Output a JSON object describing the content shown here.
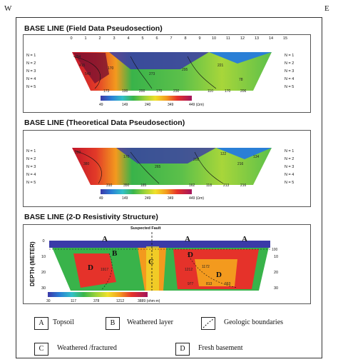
{
  "corners": {
    "west": "W",
    "east": "E"
  },
  "panels": [
    {
      "title": "BASE LINE (Field Data Pseudosection)",
      "n_labels": [
        "N = 1",
        "N = 2",
        "N = 3",
        "N = 4",
        "N = 5"
      ],
      "numbers": [
        "294",
        "415",
        "543",
        "170",
        "273",
        "295",
        "221",
        "78",
        "173",
        "100",
        "200",
        "170",
        "230",
        "110",
        "170",
        "206"
      ],
      "colorbar": [
        "49",
        "149",
        "240",
        "349",
        "449 (Ωm)"
      ]
    },
    {
      "title": "BASE LINE (Theoretical Data Pseudosection)",
      "n_labels": [
        "N = 1",
        "N = 2",
        "N = 3",
        "N = 4",
        "N = 5"
      ],
      "numbers": [
        "290",
        "380",
        "170",
        "265",
        "208",
        "122",
        "216",
        "134",
        "310",
        "350",
        "185",
        "162",
        "118",
        "213",
        "216"
      ],
      "colorbar": [
        "49",
        "149",
        "249",
        "349",
        "449 (Ωm)"
      ]
    },
    {
      "title": "BASE LINE (2-D Resistivity Structure)",
      "fault_label": "Suspected Fault",
      "depth_label": "DEPTH (METER)",
      "depth_ticks": [
        "0",
        "10",
        "20",
        "30"
      ],
      "region_labels": [
        "A",
        "A",
        "A",
        "B",
        "C",
        "D",
        "D",
        "D"
      ],
      "numbers": [
        "100",
        "1917",
        "1212",
        "977",
        "813",
        "663",
        "1172"
      ],
      "colorbar": [
        "30",
        "117",
        "378",
        "1212",
        "3889 (ohm-m)"
      ]
    }
  ],
  "x_ticks": [
    "0",
    "1",
    "2",
    "3",
    "4",
    "5",
    "6",
    "7",
    "8",
    "9",
    "10",
    "11",
    "12",
    "13",
    "14",
    "15"
  ],
  "legend": [
    {
      "key": "A",
      "text": "Topsoil"
    },
    {
      "key": "B",
      "text": "Weathered layer"
    },
    {
      "key": "",
      "text": "Geologic boundaries"
    },
    {
      "key": "C",
      "text": "Weathered /fractured"
    },
    {
      "key": "D",
      "text": "Fresh basement"
    }
  ]
}
